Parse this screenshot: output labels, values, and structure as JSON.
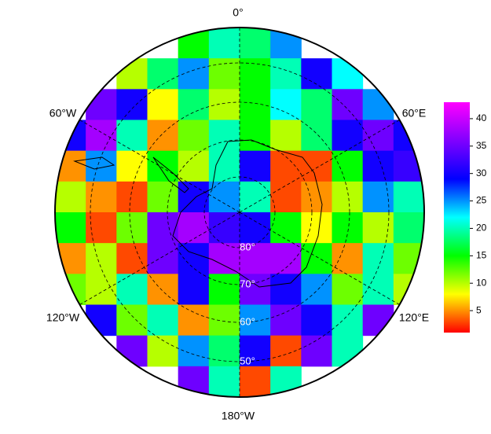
{
  "map": {
    "meridian_labels": [
      "0°",
      "60°E",
      "120°E",
      "180°W",
      "120°W",
      "60°W"
    ],
    "parallel_labels": [
      "80°",
      "70°",
      "60°",
      "50°"
    ],
    "colormap": [
      "#ff0000",
      "#ffff00",
      "#00ff00",
      "#00ffff",
      "#0000ff",
      "#8000ff",
      "#ff00ff"
    ],
    "field": {
      "rows": [
        [
          null,
          null,
          null,
          null,
          15,
          20,
          18,
          25,
          null,
          null,
          null,
          null
        ],
        [
          null,
          null,
          10,
          18,
          25,
          12,
          15,
          20,
          30,
          22,
          null,
          null
        ],
        [
          null,
          35,
          30,
          8,
          18,
          10,
          15,
          22,
          18,
          35,
          25,
          null
        ],
        [
          30,
          38,
          20,
          5,
          12,
          20,
          15,
          10,
          18,
          30,
          35,
          30
        ],
        [
          5,
          25,
          8,
          15,
          10,
          20,
          30,
          3,
          3,
          15,
          30,
          32
        ],
        [
          10,
          5,
          3,
          12,
          30,
          25,
          20,
          3,
          5,
          10,
          25,
          20
        ],
        [
          15,
          3,
          12,
          35,
          38,
          32,
          30,
          15,
          8,
          15,
          10,
          18
        ],
        [
          5,
          10,
          3,
          35,
          30,
          38,
          38,
          38,
          15,
          5,
          20,
          12
        ],
        [
          12,
          10,
          20,
          5,
          30,
          15,
          35,
          30,
          25,
          12,
          20,
          10
        ],
        [
          null,
          30,
          12,
          20,
          5,
          12,
          25,
          35,
          30,
          20,
          35,
          null
        ],
        [
          null,
          null,
          35,
          10,
          25,
          18,
          30,
          3,
          35,
          20,
          null,
          null
        ],
        [
          null,
          null,
          null,
          null,
          35,
          20,
          3,
          20,
          null,
          null,
          null,
          null
        ]
      ]
    },
    "colorbar": {
      "lim": [
        1,
        43
      ],
      "ticks": [
        5,
        10,
        15,
        20,
        25,
        30,
        35,
        40
      ]
    }
  }
}
